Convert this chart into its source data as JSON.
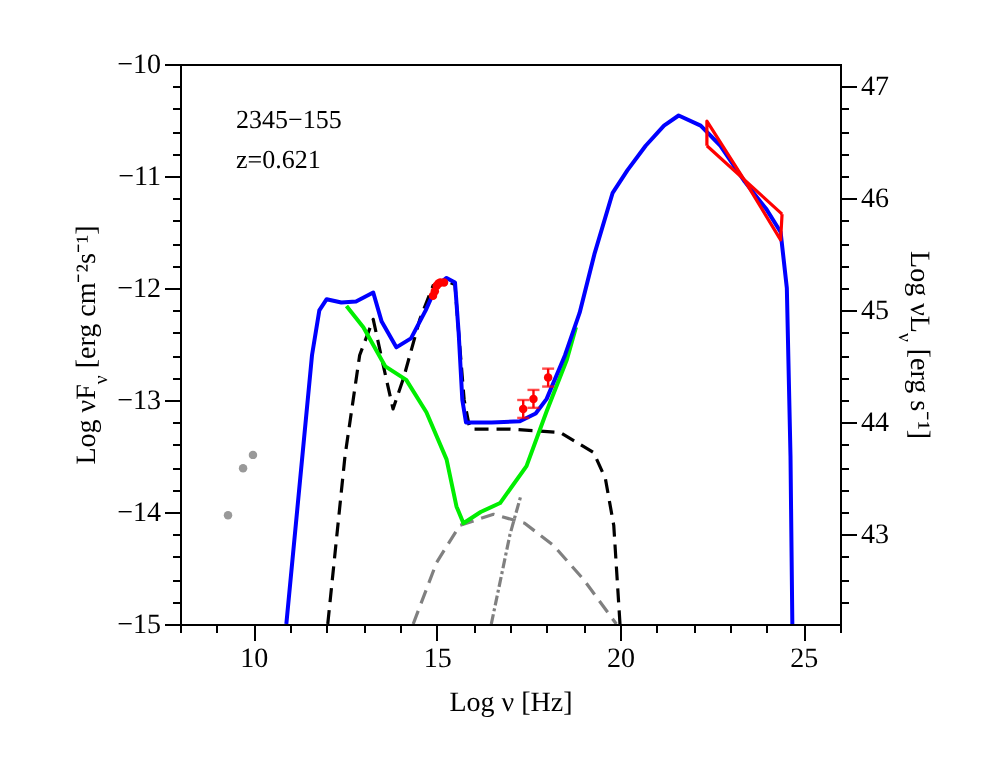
{
  "chart_data": {
    "type": "line",
    "xlabel": "Log ν  [Hz]",
    "ylabel": "Log νF$_{ν}$ [erg cm⁻²s⁻¹]",
    "y2label": "Log νL$_{ν}$ [erg s⁻¹]",
    "annotations": [
      "2345−155",
      "z=0.621"
    ],
    "xlim": [
      8,
      26
    ],
    "ylim": [
      -15,
      -10
    ],
    "y2lim": [
      42.2,
      47.2
    ],
    "xticks": [
      {
        "value": 8,
        "label": null
      },
      {
        "value": 9,
        "label": null
      },
      10,
      {
        "value": 11,
        "label": null
      },
      {
        "value": 12,
        "label": null
      },
      {
        "value": 13,
        "label": null
      },
      {
        "value": 14,
        "label": null
      },
      15,
      {
        "value": 16,
        "label": null
      },
      {
        "value": 17,
        "label": null
      },
      {
        "value": 18,
        "label": null
      },
      {
        "value": 19,
        "label": null
      },
      20,
      {
        "value": 21,
        "label": null
      },
      {
        "value": 22,
        "label": null
      },
      {
        "value": 23,
        "label": null
      },
      {
        "value": 24,
        "label": null
      },
      25,
      {
        "value": 26,
        "label": null
      }
    ],
    "yticks": [
      -15,
      {
        "value": -14.8,
        "label": null
      },
      {
        "value": -14.6,
        "label": null
      },
      {
        "value": -14.4,
        "label": null
      },
      {
        "value": -14.2,
        "label": null
      },
      -14,
      {
        "value": -13.8,
        "label": null
      },
      {
        "value": -13.6,
        "label": null
      },
      {
        "value": -13.4,
        "label": null
      },
      {
        "value": -13.2,
        "label": null
      },
      -13,
      {
        "value": -12.8,
        "label": null
      },
      {
        "value": -12.6,
        "label": null
      },
      {
        "value": -12.4,
        "label": null
      },
      {
        "value": -12.2,
        "label": null
      },
      -12,
      {
        "value": -11.8,
        "label": null
      },
      {
        "value": -11.6,
        "label": null
      },
      {
        "value": -11.4,
        "label": null
      },
      {
        "value": -11.2,
        "label": null
      },
      -11,
      {
        "value": -10.8,
        "label": null
      },
      {
        "value": -10.6,
        "label": null
      },
      {
        "value": -10.4,
        "label": null
      },
      {
        "value": -10.2,
        "label": null
      },
      -10
    ],
    "y2ticks": [
      {
        "value": 42.4,
        "label": null
      },
      {
        "value": 42.6,
        "label": null
      },
      {
        "value": 42.8,
        "label": null
      },
      43,
      {
        "value": 43.2,
        "label": null
      },
      {
        "value": 43.4,
        "label": null
      },
      {
        "value": 43.6,
        "label": null
      },
      {
        "value": 43.8,
        "label": null
      },
      44,
      {
        "value": 44.2,
        "label": null
      },
      {
        "value": 44.4,
        "label": null
      },
      {
        "value": 44.6,
        "label": null
      },
      {
        "value": 44.8,
        "label": null
      },
      45,
      {
        "value": 45.2,
        "label": null
      },
      {
        "value": 45.4,
        "label": null
      },
      {
        "value": 45.6,
        "label": null
      },
      {
        "value": 45.8,
        "label": null
      },
      46,
      {
        "value": 46.2,
        "label": null
      },
      {
        "value": 46.4,
        "label": null
      },
      {
        "value": 46.6,
        "label": null
      },
      {
        "value": 46.8,
        "label": null
      },
      47
    ],
    "grid": false,
    "series": [
      {
        "color": "#808080",
        "line_style": "dashed",
        "x": [
          14.36,
          15.0,
          15.63,
          16.55,
          17.4,
          18.19,
          19.0,
          19.9
        ],
        "values": [
          -15,
          -14.45,
          -14.12,
          -14.02,
          -14.1,
          -14.3,
          -14.6,
          -15
        ]
      },
      {
        "color": "#808080",
        "line_style": "dotted",
        "x": [
          16.49,
          17.0,
          17.3
        ],
        "values": [
          -15,
          -14.2,
          -13.85
        ]
      },
      {
        "color": "#000000",
        "line_style": "dashed",
        "x": [
          12.03,
          12.5,
          12.9,
          13.27,
          13.55,
          13.81,
          14.1,
          14.54,
          14.9,
          15.2,
          15.5,
          15.6,
          15.75,
          15.9,
          16.0,
          17.0,
          18.37,
          19.28,
          19.6,
          19.83,
          20.0
        ],
        "values": [
          -15,
          -13.5,
          -12.6,
          -12.28,
          -12.7,
          -13.08,
          -12.8,
          -12.28,
          -11.98,
          -11.93,
          -11.97,
          -12.4,
          -13.0,
          -13.25,
          -13.26,
          -13.26,
          -13.29,
          -13.47,
          -13.7,
          -14.12,
          -15
        ]
      },
      {
        "color": "#00ee00",
        "line_style": "solid",
        "x": [
          12.54,
          13.0,
          13.6,
          14.17,
          14.72,
          15.27,
          15.54,
          15.73,
          16.2,
          16.73,
          17.45,
          18.0,
          18.55,
          18.8
        ],
        "values": [
          -12.16,
          -12.35,
          -12.7,
          -12.82,
          -13.11,
          -13.53,
          -13.95,
          -14.1,
          -14.0,
          -13.92,
          -13.59,
          -13.1,
          -12.64,
          -12.35
        ]
      },
      {
        "color": "#0000ff",
        "line_style": "solid",
        "x": [
          10.9,
          11.6,
          11.8,
          12.0,
          12.4,
          12.8,
          13.27,
          13.5,
          13.9,
          14.3,
          14.7,
          15.0,
          15.27,
          15.5,
          15.6,
          15.7,
          15.8,
          16.5,
          17.27,
          17.7,
          18.0,
          18.5,
          18.9,
          19.3,
          19.8,
          20.2,
          20.7,
          21.2,
          21.6,
          22.2,
          22.74,
          23.4,
          24.0,
          24.38,
          24.55,
          24.65,
          24.7
        ],
        "values": [
          -15,
          -12.6,
          -12.2,
          -12.1,
          -12.13,
          -12.12,
          -12.04,
          -12.3,
          -12.53,
          -12.45,
          -12.2,
          -11.98,
          -11.91,
          -11.95,
          -12.4,
          -13.0,
          -13.2,
          -13.2,
          -13.19,
          -13.12,
          -12.99,
          -12.6,
          -12.22,
          -11.7,
          -11.15,
          -10.95,
          -10.73,
          -10.55,
          -10.46,
          -10.55,
          -10.73,
          -11.05,
          -11.3,
          -11.5,
          -12.0,
          -13.5,
          -15
        ]
      },
      {
        "color": "#ff0000",
        "line_style": "solid",
        "x": [
          22.37,
          22.37,
          23.38,
          24.42
        ],
        "values": [
          -10.73,
          -10.51,
          -11.03,
          -11.34
        ]
      },
      {
        "color": "#ff0000",
        "line_style": "solid",
        "x": [
          22.37,
          23.38,
          24.38,
          24.42
        ],
        "values": [
          -10.73,
          -11.03,
          -11.57,
          -11.34
        ]
      },
      {
        "type": "scatter",
        "color": "#ff0000",
        "marker": "circle",
        "x": [
          14.9,
          14.95,
          15.0,
          15.05,
          15.1,
          15.2,
          17.36,
          17.64,
          18.04
        ],
        "values": [
          -12.07,
          -12.03,
          -11.98,
          -11.96,
          -11.95,
          -11.95,
          -13.08,
          -12.99,
          -12.8
        ],
        "errors": [
          null,
          null,
          null,
          null,
          null,
          null,
          0.08,
          0.08,
          0.08
        ]
      },
      {
        "type": "scatter",
        "color": "#999999",
        "marker": "circle",
        "x": [
          9.31,
          9.72,
          9.99
        ],
        "values": [
          -14.03,
          -13.61,
          -13.49
        ]
      }
    ]
  }
}
